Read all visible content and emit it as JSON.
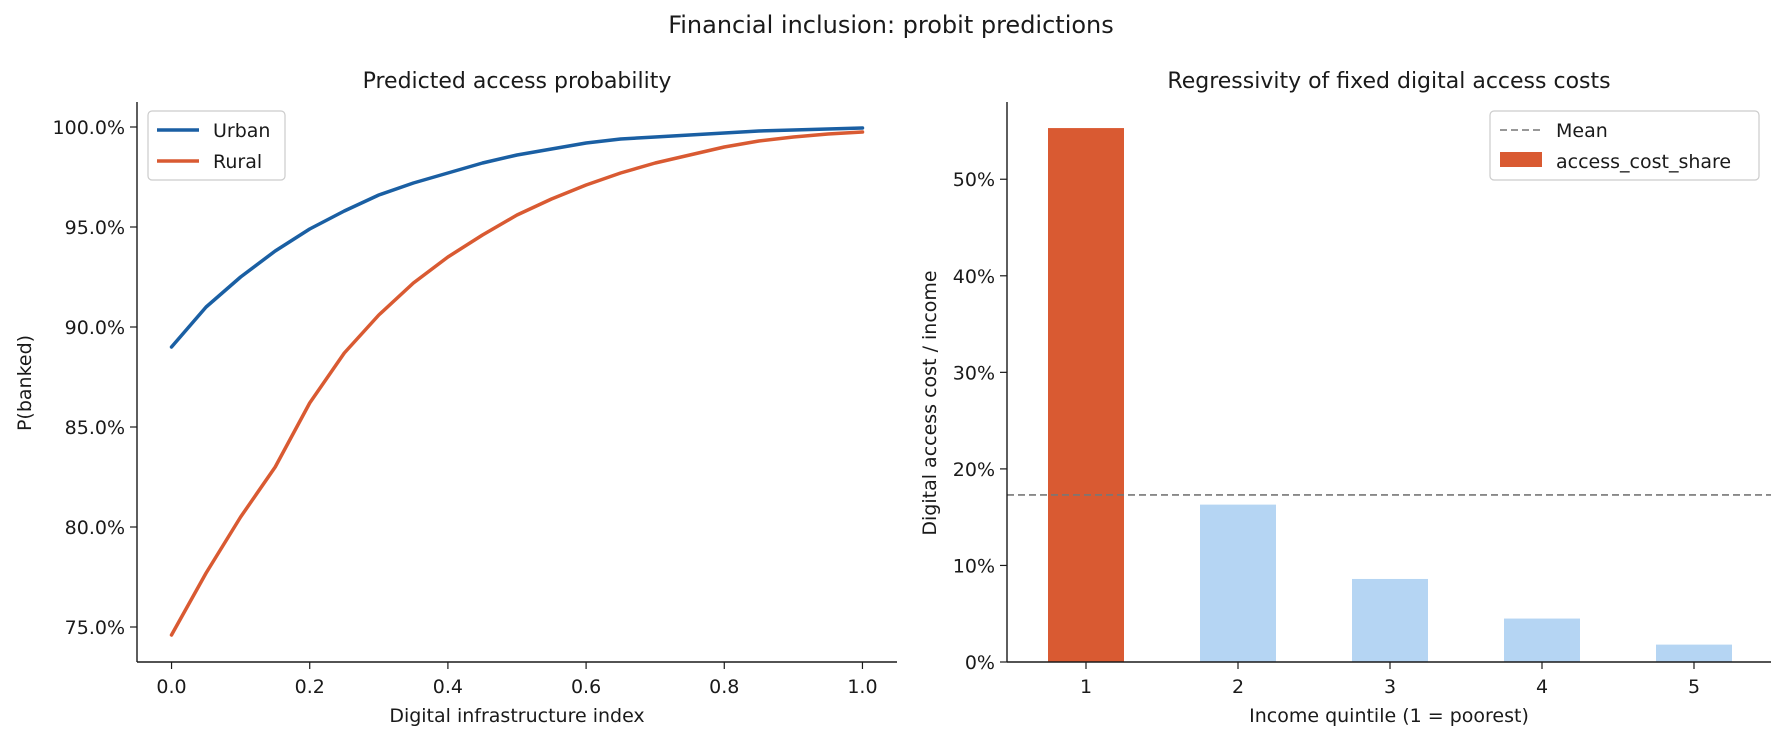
{
  "figure": {
    "suptitle": "Financial inclusion: probit predictions"
  },
  "colors": {
    "urban": "#1a5fa3",
    "rural": "#d95a32",
    "bar_highlight": "#d95a32",
    "bar_default": "#b5d5f3",
    "mean_line": "#777777",
    "axis": "#1a1a1a"
  },
  "chart_data": [
    {
      "type": "line",
      "title": "Predicted access probability",
      "xlabel": "Digital infrastructure index",
      "ylabel": "P(banked)",
      "xlim": [
        -0.05,
        1.05
      ],
      "ylim": [
        0.7325,
        1.0125
      ],
      "xticks": [
        0.0,
        0.2,
        0.4,
        0.6,
        0.8,
        1.0
      ],
      "xtick_labels": [
        "0.0",
        "0.2",
        "0.4",
        "0.6",
        "0.8",
        "1.0"
      ],
      "yticks": [
        0.75,
        0.8,
        0.85,
        0.9,
        0.95,
        1.0
      ],
      "ytick_labels": [
        "75.0%",
        "80.0%",
        "85.0%",
        "90.0%",
        "95.0%",
        "100.0%"
      ],
      "legend_position": "upper-left",
      "series": [
        {
          "name": "Urban",
          "color": "#1a5fa3",
          "x": [
            0.0,
            0.05,
            0.1,
            0.15,
            0.2,
            0.25,
            0.3,
            0.35,
            0.4,
            0.45,
            0.5,
            0.55,
            0.6,
            0.65,
            0.7,
            0.75,
            0.8,
            0.85,
            0.9,
            0.95,
            1.0
          ],
          "y": [
            0.89,
            0.91,
            0.925,
            0.938,
            0.949,
            0.958,
            0.966,
            0.972,
            0.977,
            0.982,
            0.986,
            0.989,
            0.992,
            0.994,
            0.995,
            0.996,
            0.997,
            0.998,
            0.9985,
            0.999,
            0.9995
          ]
        },
        {
          "name": "Rural",
          "color": "#d95a32",
          "x": [
            0.0,
            0.05,
            0.1,
            0.15,
            0.2,
            0.25,
            0.3,
            0.35,
            0.4,
            0.45,
            0.5,
            0.55,
            0.6,
            0.65,
            0.7,
            0.75,
            0.8,
            0.85,
            0.9,
            0.95,
            1.0
          ],
          "y": [
            0.746,
            0.777,
            0.805,
            0.83,
            0.862,
            0.887,
            0.906,
            0.922,
            0.935,
            0.946,
            0.956,
            0.964,
            0.971,
            0.977,
            0.982,
            0.986,
            0.99,
            0.993,
            0.995,
            0.9965,
            0.9975
          ]
        }
      ]
    },
    {
      "type": "bar",
      "title": "Regressivity of fixed digital access costs",
      "xlabel": "Income quintile (1 = poorest)",
      "ylabel": "Digital access cost / income",
      "categories": [
        "1",
        "2",
        "3",
        "4",
        "5"
      ],
      "ylim": [
        0,
        0.58
      ],
      "yticks": [
        0.0,
        0.1,
        0.2,
        0.3,
        0.4,
        0.5
      ],
      "ytick_labels": [
        "0%",
        "10%",
        "20%",
        "30%",
        "40%",
        "50%"
      ],
      "legend_position": "upper-right",
      "series": [
        {
          "name": "access_cost_share",
          "values": [
            0.553,
            0.163,
            0.086,
            0.045,
            0.018
          ],
          "highlight_index": 0
        }
      ],
      "mean_line": {
        "name": "Mean",
        "value": 0.173
      }
    }
  ]
}
